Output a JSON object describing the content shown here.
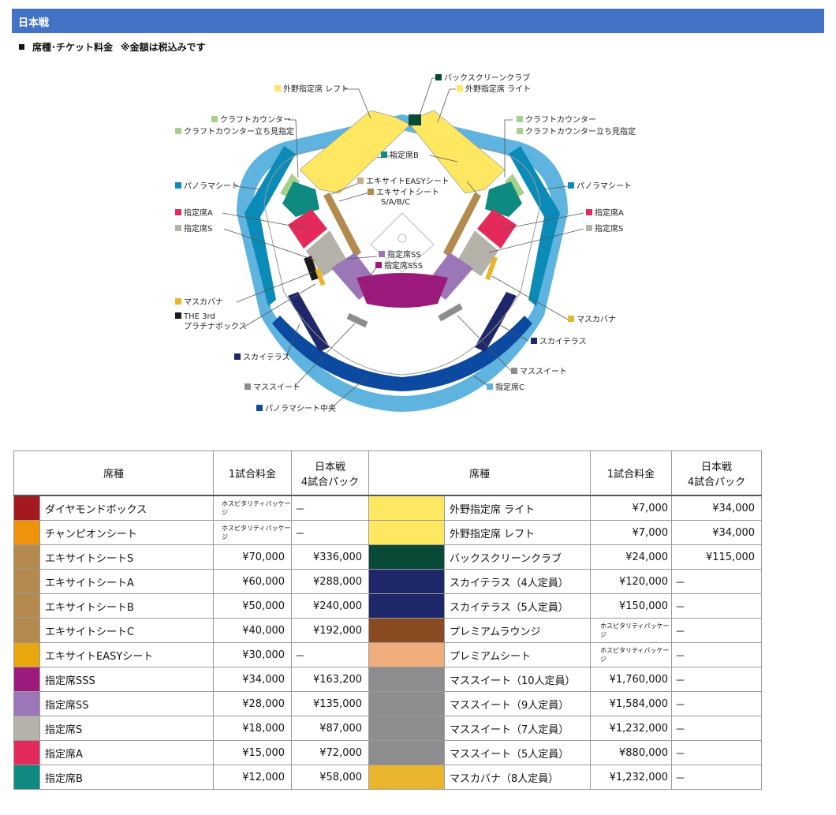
{
  "header": {
    "title": "日本戦"
  },
  "section": {
    "bullet": "■",
    "title": "席種･チケット料金",
    "note": "※金額は税込みです"
  },
  "map_labels": {
    "outfield_left": "外野指定席 レフト",
    "backscreen": "バックスクリーンクラブ",
    "outfield_right": "外野指定席 ライト",
    "craft_counter": "クラフトカウンター",
    "craft_counter_standing": "クラフトカウンター立ち見指定",
    "seat_b": "指定席B",
    "excite_easy": "エキサイトEASYシート",
    "excite_seat": "エキサイトシート",
    "excite_seat_sub": "S/A/B/C",
    "panorama": "パノラマシート",
    "seat_a": "指定席A",
    "seat_s": "指定席S",
    "seat_ss": "指定席SS",
    "seat_sss": "指定席SSS",
    "masukabana": "マスカバナ",
    "the3rd_1": "THE 3rd",
    "the3rd_2": "プラチナボックス",
    "sky_terrace": "スカイテラス",
    "mass_suite": "マススイート",
    "seat_c": "指定席C",
    "panorama_center": "パノラマシート中央"
  },
  "table": {
    "headers": {
      "seat_type": "席種",
      "single_price": "1試合料金",
      "pack_line1": "日本戦",
      "pack_line2": "4試合パック"
    },
    "left_rows": [
      {
        "color": "#a3191f",
        "name": "ダイヤモンドボックス",
        "price": "ホスピタリティパッケージ",
        "pack": "－",
        "price_style": "tiny"
      },
      {
        "color": "#f0930c",
        "name": "チャンピオンシート",
        "price": "ホスピタリティパッケージ",
        "pack": "－",
        "price_style": "tiny"
      },
      {
        "color": "#b48a4f",
        "name": "エキサイトシートS",
        "price": "¥70,000",
        "pack": "¥336,000"
      },
      {
        "color": "#b48a4f",
        "name": "エキサイトシートA",
        "price": "¥60,000",
        "pack": "¥288,000"
      },
      {
        "color": "#b48a4f",
        "name": "エキサイトシートB",
        "price": "¥50,000",
        "pack": "¥240,000"
      },
      {
        "color": "#b48a4f",
        "name": "エキサイトシートC",
        "price": "¥40,000",
        "pack": "¥192,000"
      },
      {
        "color": "#e8a60f",
        "name": "エキサイトEASYシート",
        "price": "¥30,000",
        "pack": "－"
      },
      {
        "color": "#9c1a7b",
        "name": "指定席SSS",
        "price": "¥34,000",
        "pack": "¥163,200"
      },
      {
        "color": "#9c77b8",
        "name": "指定席SS",
        "price": "¥28,000",
        "pack": "¥135,000"
      },
      {
        "color": "#b5b2aa",
        "name": "指定席S",
        "price": "¥18,000",
        "pack": "¥87,000"
      },
      {
        "color": "#e42a5a",
        "name": "指定席A",
        "price": "¥15,000",
        "pack": "¥72,000"
      },
      {
        "color": "#0e8a80",
        "name": "指定席B",
        "price": "¥12,000",
        "pack": "¥58,000"
      }
    ],
    "right_rows": [
      {
        "color": "#ffe761",
        "name": "外野指定席 ライト",
        "price": "¥7,000",
        "pack": "¥34,000"
      },
      {
        "color": "#ffe761",
        "name": "外野指定席 レフト",
        "price": "¥7,000",
        "pack": "¥34,000"
      },
      {
        "color": "#084a37",
        "name": "バックスクリーンクラブ",
        "price": "¥24,000",
        "pack": "¥115,000"
      },
      {
        "color": "#1f276b",
        "name": "スカイテラス（4人定員）",
        "price": "¥120,000",
        "pack": "－"
      },
      {
        "color": "#1f276b",
        "name": "スカイテラス（5人定員）",
        "price": "¥150,000",
        "pack": "－"
      },
      {
        "color": "#8a4b22",
        "name": "プレミアムラウンジ",
        "price": "ホスピタリティパッケージ",
        "pack": "－",
        "price_style": "tiny"
      },
      {
        "color": "#f0ad7c",
        "name": "プレミアムシート",
        "price": "ホスピタリティパッケージ",
        "pack": "－",
        "price_style": "tiny"
      },
      {
        "color": "#8d8d8f",
        "name": "マススイート（10人定員）",
        "price": "¥1,760,000",
        "pack": "－"
      },
      {
        "color": "#8d8d8f",
        "name": "マススイート（9人定員）",
        "price": "¥1,584,000",
        "pack": "－"
      },
      {
        "color": "#8d8d8f",
        "name": "マススイート（7人定員）",
        "price": "¥1,232,000",
        "pack": "－"
      },
      {
        "color": "#8d8d8f",
        "name": "マススイート（5人定員）",
        "price": "¥880,000",
        "pack": "－"
      },
      {
        "color": "#e9b52c",
        "name": "マスカバナ（8人定員）",
        "price": "¥1,232,000",
        "pack": "－"
      }
    ]
  }
}
